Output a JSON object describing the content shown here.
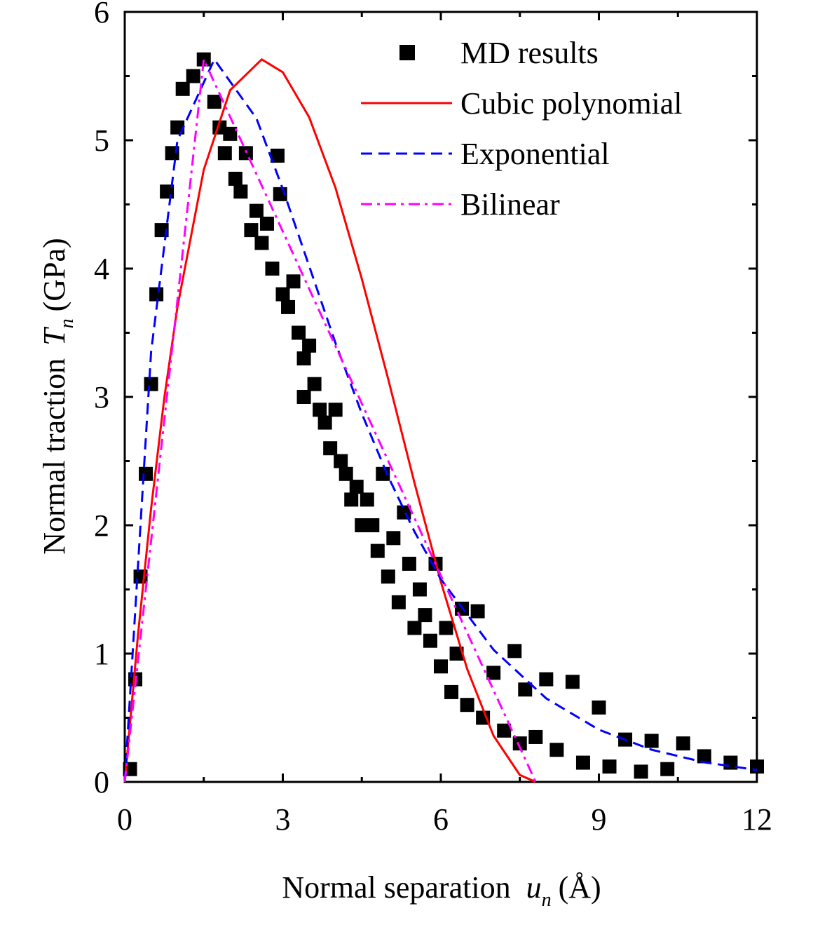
{
  "chart_data": {
    "type": "line",
    "xlabel": {
      "text": "Normal separation",
      "symbol": "u",
      "subscript": "n",
      "unit": "(Å)"
    },
    "ylabel": {
      "text": "Normal traction",
      "symbol": "T",
      "subscript": "n",
      "unit": "(GPa)"
    },
    "xlim": [
      0,
      12
    ],
    "xticks": [
      0,
      3,
      6,
      9,
      12
    ],
    "ylim": [
      0,
      6
    ],
    "yticks": [
      0,
      1,
      2,
      3,
      4,
      5,
      6
    ],
    "legend": "upper right",
    "series": [
      {
        "name": "MD results",
        "color": "#000000",
        "style": "markers",
        "x": [
          0.1,
          0.2,
          0.3,
          0.4,
          0.5,
          0.6,
          0.7,
          0.8,
          0.9,
          1.0,
          1.1,
          1.3,
          1.5,
          1.7,
          1.8,
          1.9,
          2.0,
          2.1,
          2.2,
          2.3,
          2.4,
          2.5,
          2.6,
          2.7,
          2.8,
          2.9,
          2.95,
          3.0,
          3.1,
          3.2,
          3.3,
          3.4,
          3.5,
          3.6,
          3.4,
          3.7,
          3.8,
          3.9,
          4.0,
          4.1,
          4.2,
          4.3,
          4.4,
          4.5,
          4.6,
          4.7,
          4.8,
          4.9,
          5.0,
          5.1,
          5.2,
          5.3,
          5.4,
          5.5,
          5.6,
          5.7,
          5.8,
          5.9,
          6.0,
          6.1,
          6.2,
          6.3,
          6.4,
          6.5,
          6.7,
          6.8,
          7.0,
          7.2,
          7.4,
          7.5,
          7.6,
          7.8,
          8.0,
          8.2,
          8.5,
          8.7,
          9.0,
          9.2,
          9.5,
          9.8,
          10.0,
          10.3,
          10.6,
          11.0,
          11.5,
          12.0
        ],
        "values": [
          0.1,
          0.8,
          1.6,
          2.4,
          3.1,
          3.8,
          4.3,
          4.6,
          4.9,
          5.1,
          5.4,
          5.5,
          5.63,
          5.3,
          5.1,
          4.9,
          5.05,
          4.7,
          4.6,
          4.9,
          4.3,
          4.45,
          4.2,
          4.35,
          4.0,
          4.88,
          4.58,
          3.8,
          3.7,
          3.9,
          3.5,
          3.3,
          3.4,
          3.1,
          3.0,
          2.9,
          2.8,
          2.6,
          2.9,
          2.5,
          2.4,
          2.2,
          2.3,
          2.0,
          2.2,
          2.0,
          1.8,
          2.4,
          1.6,
          1.9,
          1.4,
          2.1,
          1.7,
          1.2,
          1.5,
          1.3,
          1.1,
          1.7,
          0.9,
          1.2,
          0.7,
          1.0,
          1.35,
          0.6,
          1.33,
          0.5,
          0.85,
          0.4,
          1.02,
          0.3,
          0.72,
          0.35,
          0.8,
          0.25,
          0.78,
          0.15,
          0.58,
          0.12,
          0.33,
          0.08,
          0.32,
          0.1,
          0.3,
          0.2,
          0.15,
          0.12
        ]
      },
      {
        "name": "Cubic polynomial",
        "color": "#ff0000",
        "style": "solid",
        "x": [
          0,
          0.25,
          0.5,
          0.75,
          1.0,
          1.5,
          2.0,
          2.6,
          3.0,
          3.5,
          4.0,
          4.5,
          5.0,
          5.5,
          6.0,
          6.5,
          7.0,
          7.5,
          7.8
        ],
        "values": [
          0,
          1.14,
          2.13,
          2.99,
          3.7,
          4.77,
          5.39,
          5.63,
          5.53,
          5.18,
          4.63,
          3.92,
          3.14,
          2.33,
          1.56,
          0.88,
          0.36,
          0.054,
          0
        ]
      },
      {
        "name": "Exponential",
        "color": "#0000ff",
        "style": "dashed",
        "x": [
          0,
          0.5,
          1.0,
          1.7,
          2.5,
          3,
          3.5,
          4,
          4.5,
          5,
          5.5,
          6,
          7,
          8,
          9,
          10,
          11,
          12
        ],
        "values": [
          0,
          3.35,
          5.0,
          5.63,
          5.17,
          4.62,
          4.02,
          3.42,
          2.87,
          2.38,
          1.95,
          1.58,
          1.03,
          0.651,
          0.407,
          0.251,
          0.153,
          0.093
        ]
      },
      {
        "name": "Bilinear",
        "color": "#ff00ff",
        "style": "dashdot",
        "x": [
          0,
          1.5,
          7.8
        ],
        "values": [
          0,
          5.63,
          0
        ]
      }
    ]
  }
}
